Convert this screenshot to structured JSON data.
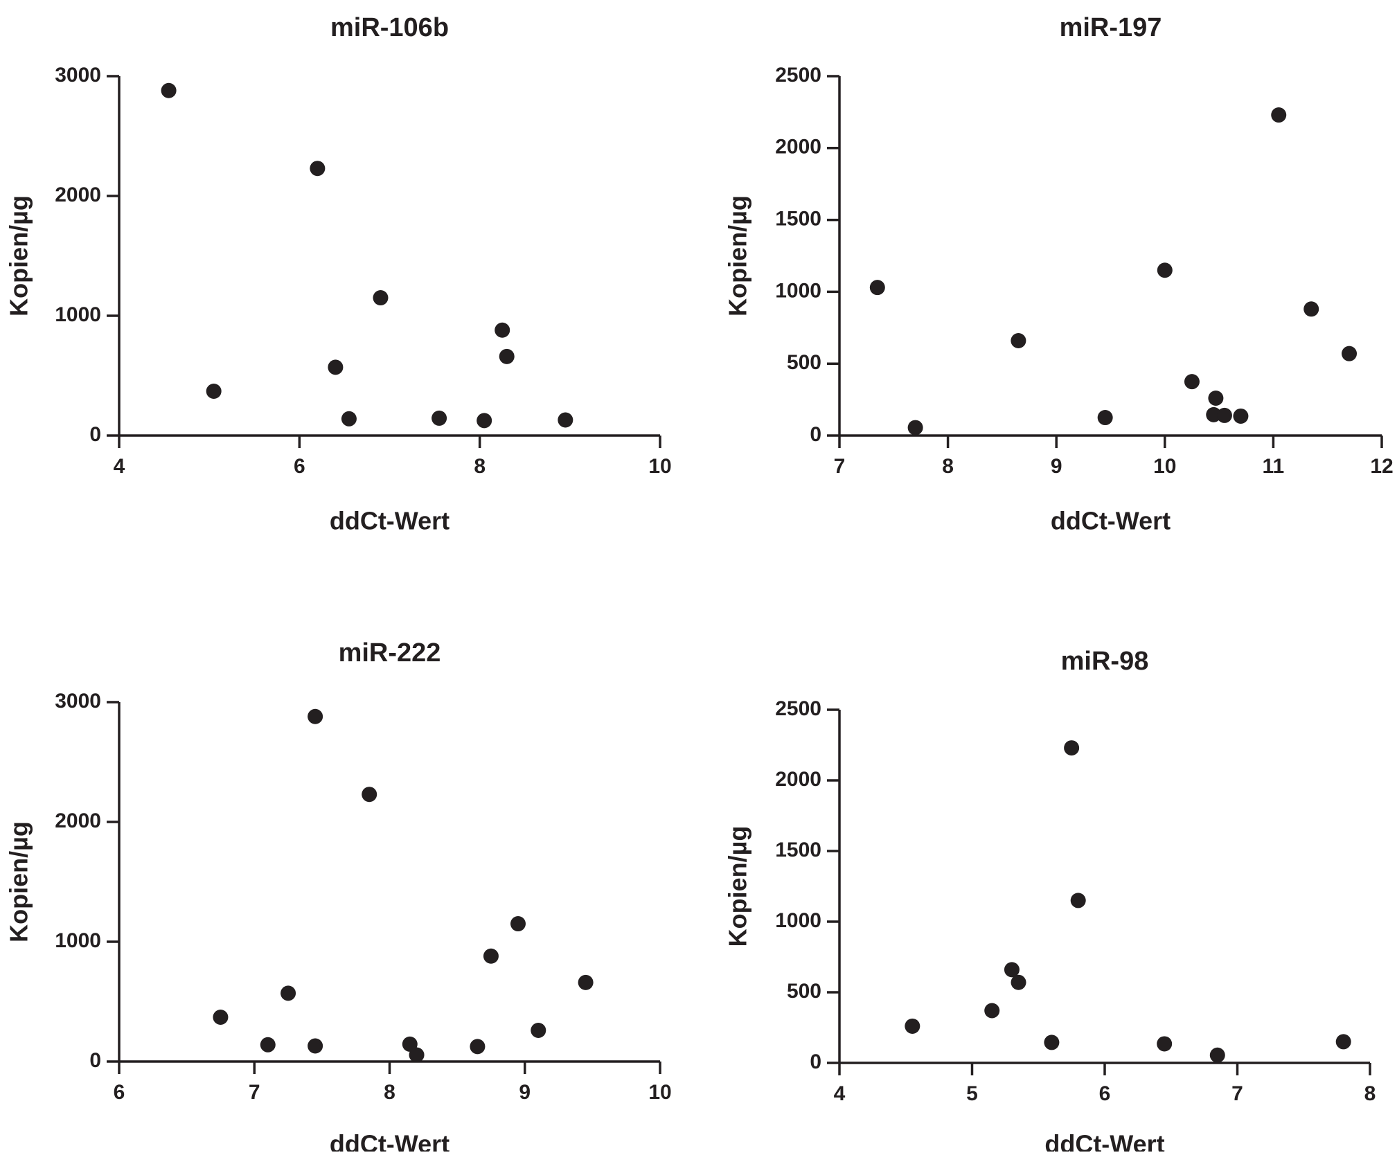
{
  "chart_data": [
    {
      "type": "scatter",
      "title": "miR-106b",
      "xlabel": "ddCt-Wert",
      "ylabel": "Kopien/µg",
      "xlim": [
        4,
        10
      ],
      "ylim": [
        0,
        3000
      ],
      "xticks": [
        "4",
        "6",
        "8",
        "10"
      ],
      "yticks": [
        "0",
        "1000",
        "2000",
        "3000"
      ],
      "x": [
        4.55,
        5.05,
        6.2,
        6.4,
        6.55,
        6.9,
        7.55,
        8.05,
        8.25,
        8.3,
        8.95
      ],
      "y": [
        2880,
        370,
        2230,
        570,
        140,
        1150,
        145,
        125,
        880,
        660,
        130
      ]
    },
    {
      "type": "scatter",
      "title": "miR-197",
      "xlabel": "ddCt-Wert",
      "ylabel": "Kopien/µg",
      "xlim": [
        7,
        12
      ],
      "ylim": [
        0,
        2500
      ],
      "xticks": [
        "7",
        "8",
        "9",
        "10",
        "11",
        "12"
      ],
      "yticks": [
        "0",
        "500",
        "1000",
        "1500",
        "2000",
        "2500"
      ],
      "x": [
        7.35,
        7.7,
        8.65,
        9.45,
        10.0,
        10.25,
        10.45,
        10.47,
        10.55,
        10.7,
        11.05,
        11.35,
        11.7
      ],
      "y": [
        1030,
        55,
        660,
        125,
        1150,
        375,
        145,
        260,
        140,
        135,
        2230,
        880,
        570
      ]
    },
    {
      "type": "scatter",
      "title": "miR-222",
      "xlabel": "ddCt-Wert",
      "ylabel": "Kopien/µg",
      "xlim": [
        6,
        10
      ],
      "ylim": [
        0,
        3000
      ],
      "xticks": [
        "6",
        "7",
        "8",
        "9",
        "10"
      ],
      "yticks": [
        "0",
        "1000",
        "2000",
        "3000"
      ],
      "x": [
        6.75,
        7.1,
        7.25,
        7.45,
        7.45,
        7.85,
        8.15,
        8.2,
        8.65,
        8.75,
        8.95,
        9.1,
        9.45
      ],
      "y": [
        370,
        140,
        570,
        130,
        2880,
        2230,
        145,
        55,
        125,
        880,
        1150,
        260,
        660
      ]
    },
    {
      "type": "scatter",
      "title": "miR-98",
      "xlabel": "ddCt-Wert",
      "ylabel": "Kopien/µg",
      "xlim": [
        4,
        8
      ],
      "ylim": [
        0,
        2500
      ],
      "xticks": [
        "4",
        "5",
        "6",
        "7",
        "8"
      ],
      "yticks": [
        "0",
        "500",
        "1000",
        "1500",
        "2000",
        "2500"
      ],
      "x": [
        4.55,
        5.15,
        5.3,
        5.35,
        5.6,
        5.75,
        5.8,
        6.45,
        6.85,
        7.8
      ],
      "y": [
        260,
        370,
        660,
        570,
        145,
        2230,
        1150,
        135,
        55,
        150
      ]
    }
  ]
}
